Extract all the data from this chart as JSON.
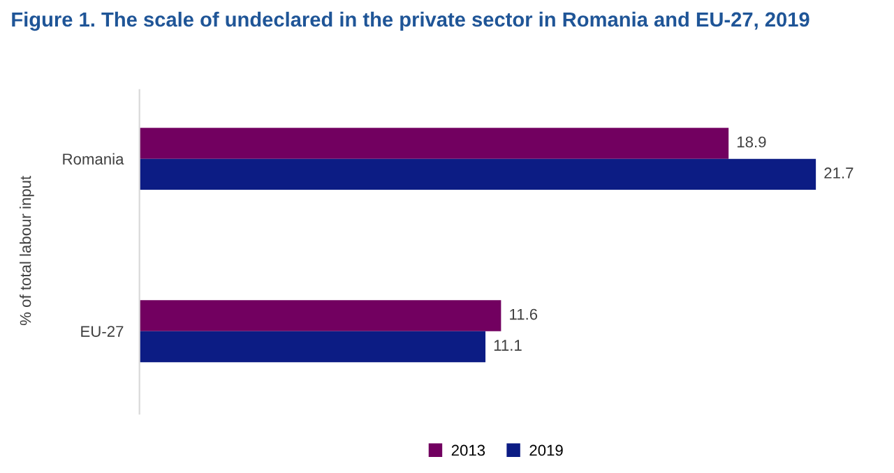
{
  "chart_data": {
    "type": "bar",
    "orientation": "horizontal",
    "title": "Figure 1. The scale of undeclared in the private sector in Romania and EU-27, 2019",
    "ylabel": "% of total labour input",
    "categories": [
      "Romania",
      "EU-27"
    ],
    "series": [
      {
        "name": "2013",
        "color": "#720060",
        "values": [
          18.9,
          11.6
        ]
      },
      {
        "name": "2019",
        "color": "#0c1c84",
        "values": [
          21.7,
          11.1
        ]
      }
    ],
    "data_labels": true,
    "legend": "bottom",
    "grid": false
  }
}
